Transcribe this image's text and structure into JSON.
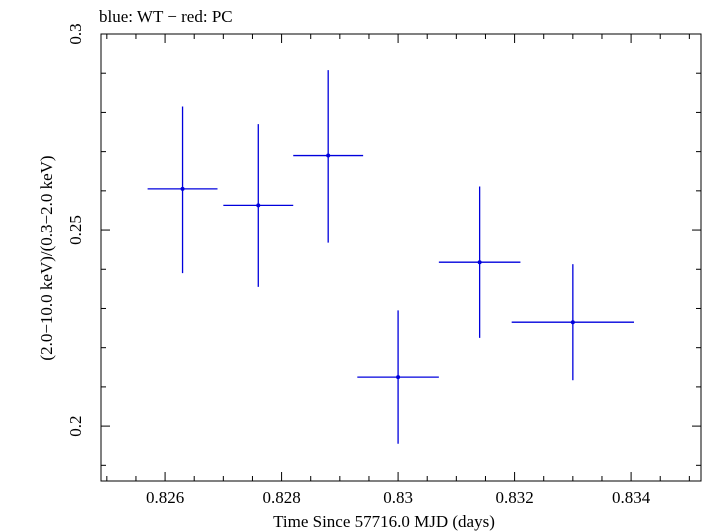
{
  "chart_data": {
    "type": "scatter",
    "title": "blue: WT − red: PC",
    "xlabel": "Time Since 57716.0 MJD (days)",
    "ylabel": "(2.0−10.0 keV)/(0.3−2.0 keV)",
    "xlim": [
      0.8249,
      0.8352
    ],
    "ylim": [
      0.186,
      0.3
    ],
    "x_ticks": [
      0.826,
      0.828,
      0.83,
      0.832,
      0.834
    ],
    "x_tick_labels": [
      "0.826",
      "0.828",
      "0.83",
      "0.832",
      "0.834"
    ],
    "y_ticks": [
      0.2,
      0.25,
      0.3
    ],
    "y_tick_labels": [
      "0.2",
      "0.25",
      "0.3"
    ],
    "grid": false,
    "series": [
      {
        "color": "#0000dd",
        "points": [
          {
            "x": 0.8263,
            "y": 0.2605,
            "xerr": 0.0006,
            "yerr_low": 0.0215,
            "yerr_high": 0.021
          },
          {
            "x": 0.8276,
            "y": 0.2563,
            "xerr": 0.0006,
            "yerr_low": 0.0208,
            "yerr_high": 0.0207
          },
          {
            "x": 0.8288,
            "y": 0.269,
            "xerr": 0.0006,
            "yerr_low": 0.0222,
            "yerr_high": 0.0218
          },
          {
            "x": 0.83,
            "y": 0.2125,
            "xerr": 0.0007,
            "yerr_low": 0.017,
            "yerr_high": 0.017
          },
          {
            "x": 0.8314,
            "y": 0.2418,
            "xerr": 0.0007,
            "yerr_low": 0.0193,
            "yerr_high": 0.0193
          },
          {
            "x": 0.833,
            "y": 0.2265,
            "xerr": 0.00105,
            "yerr_low": 0.0148,
            "yerr_high": 0.0148
          }
        ]
      }
    ]
  }
}
